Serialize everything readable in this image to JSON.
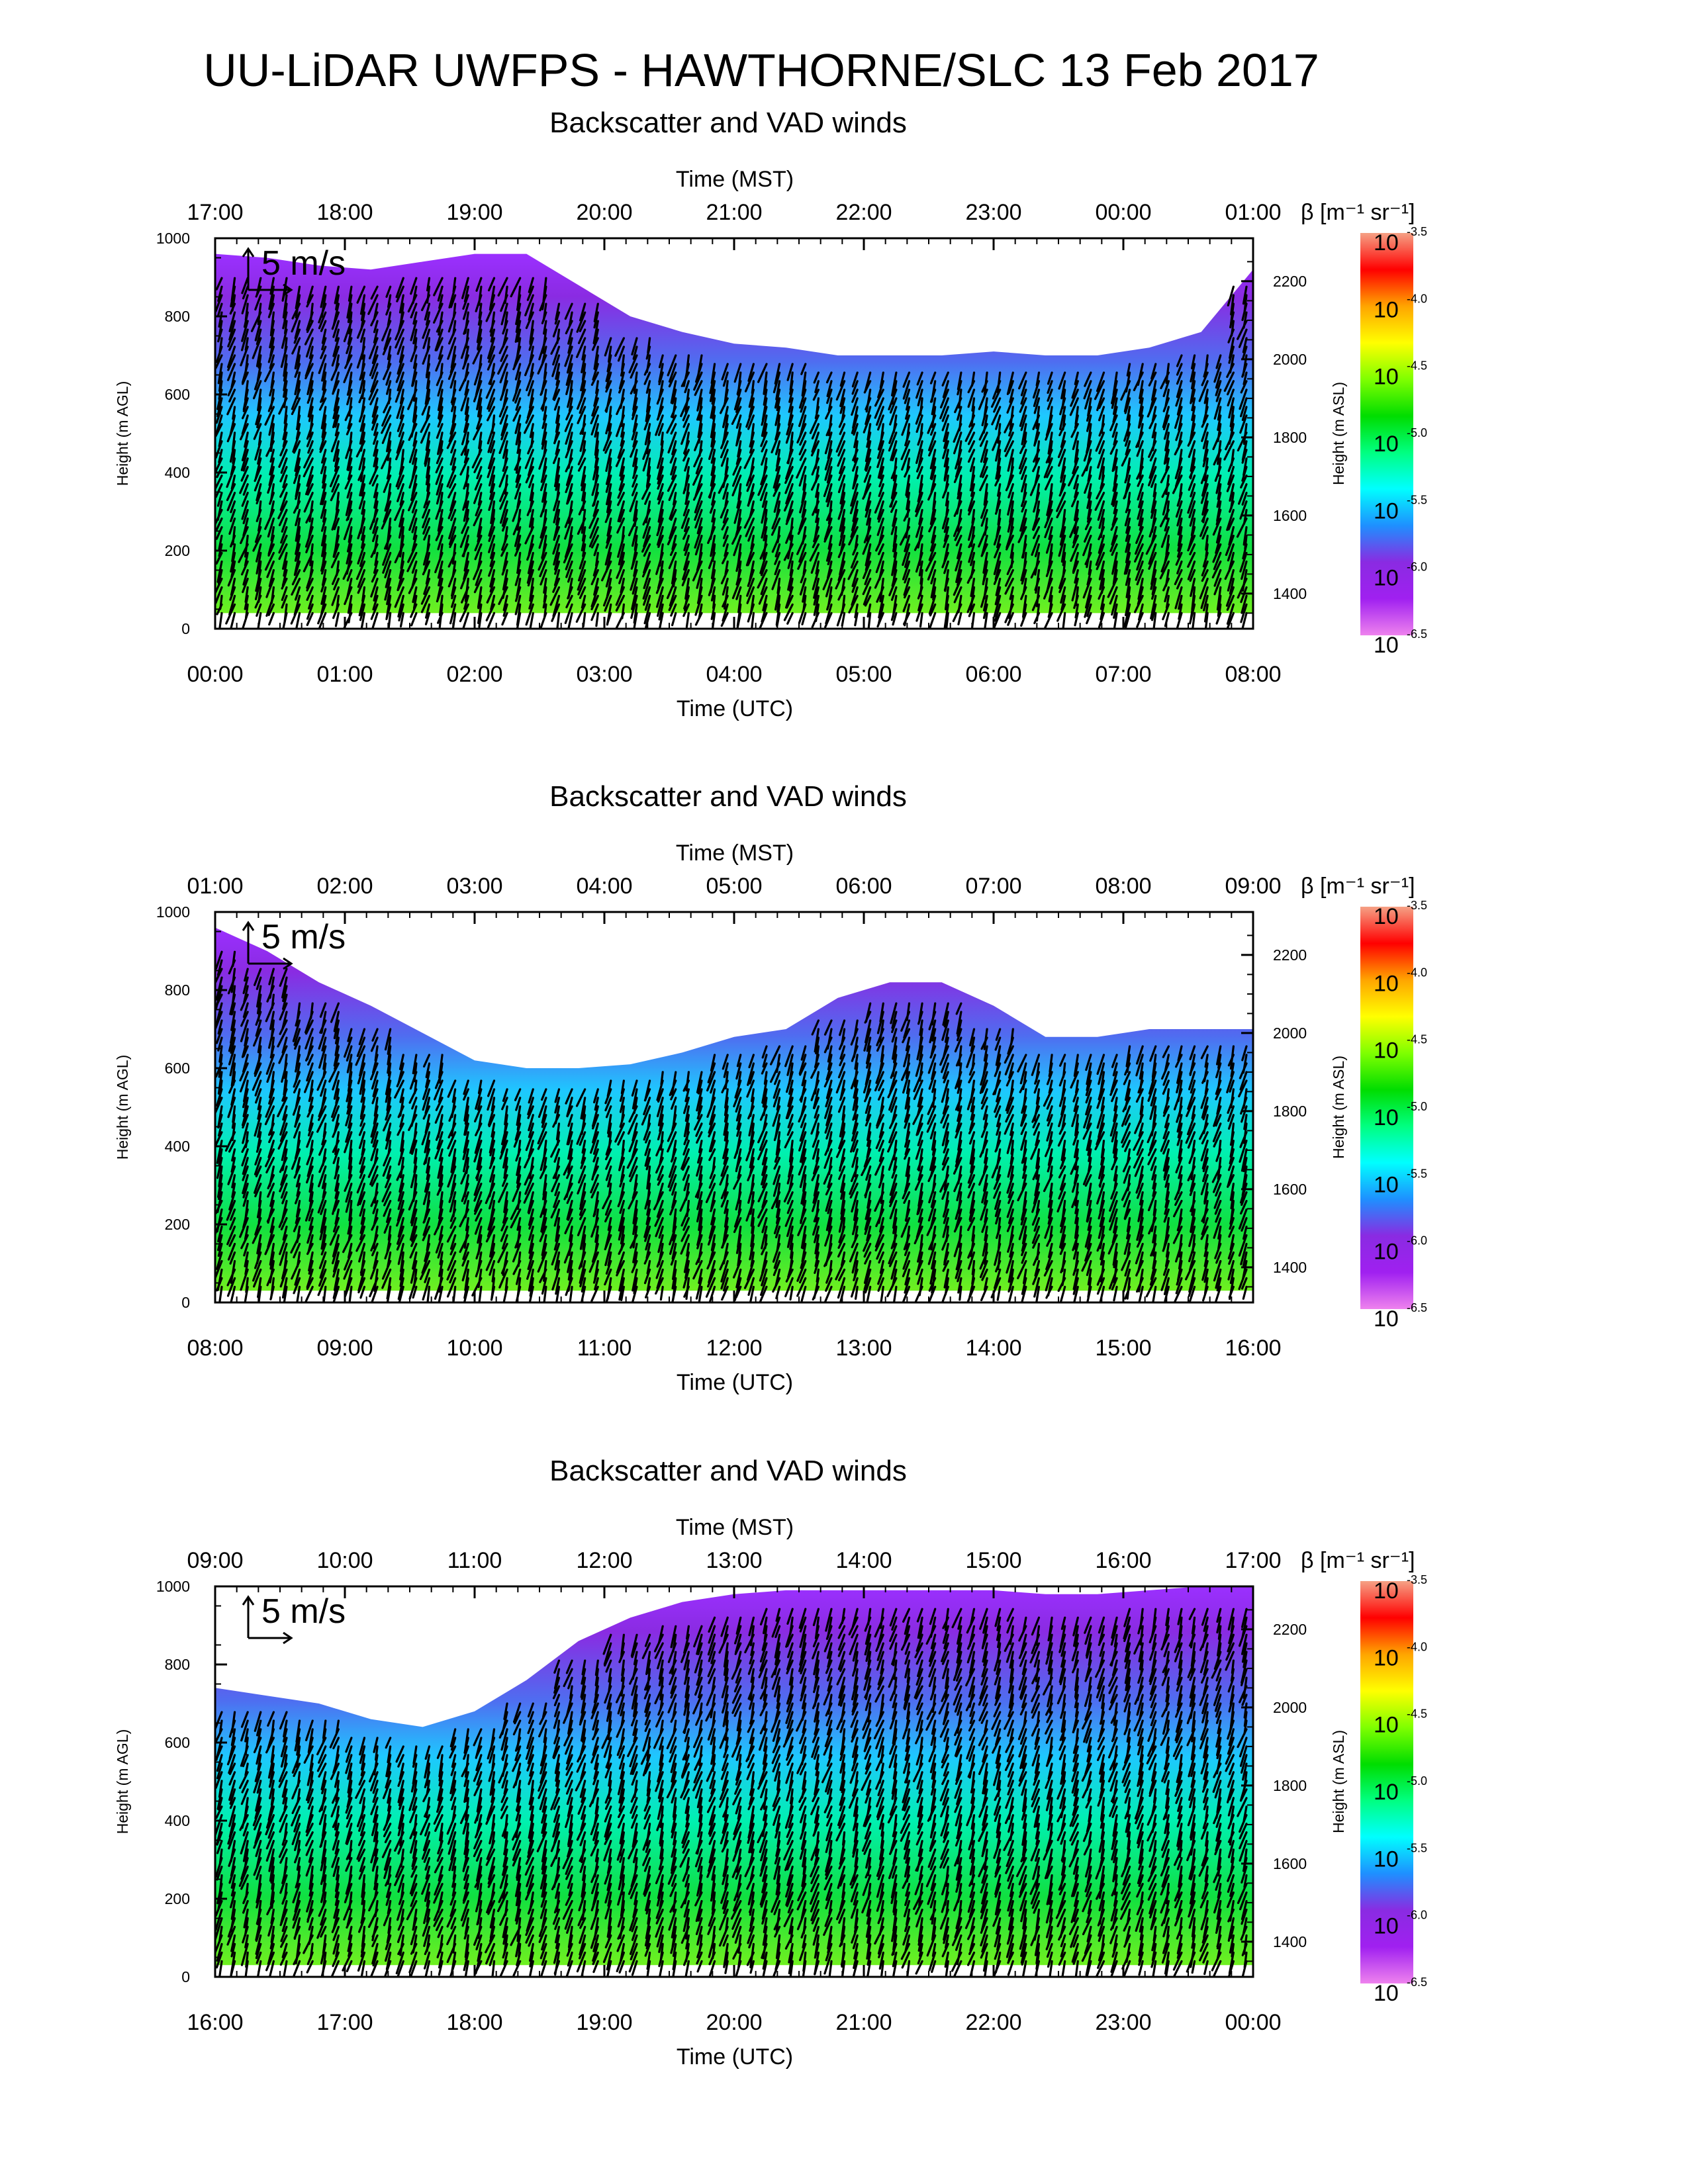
{
  "figure": {
    "title": "UU-LiDAR UWFPS - HAWTHORNE/SLC 13 Feb 2017"
  },
  "colorbar": {
    "label": "β [m⁻¹ sr⁻¹]",
    "exponents": [
      "-3.5",
      "-4.0",
      "-4.5",
      "-5.0",
      "-5.5",
      "-6.0",
      "-6.5"
    ],
    "colors": [
      "#f5a185",
      "#ff0000",
      "#ffa500",
      "#ffff00",
      "#7fff00",
      "#00dd00",
      "#00ff80",
      "#00ffff",
      "#1e90ff",
      "#8a2be2",
      "#a020f0",
      "#ee82ee"
    ]
  },
  "chart_data": [
    {
      "type": "heatmap",
      "title": "Backscatter and VAD winds",
      "x_top_label": "Time (MST)",
      "x_top_ticks": [
        "17:00",
        "18:00",
        "19:00",
        "20:00",
        "21:00",
        "22:00",
        "23:00",
        "00:00",
        "01:00"
      ],
      "xlabel": "Time (UTC)",
      "x_ticks": [
        "00:00",
        "01:00",
        "02:00",
        "03:00",
        "04:00",
        "05:00",
        "06:00",
        "07:00",
        "08:00"
      ],
      "ylabel": "Height (m AGL)",
      "y_ticks": [
        0,
        200,
        400,
        600,
        800,
        1000
      ],
      "ylim": [
        0,
        1000
      ],
      "y2label": "Height (m ASL)",
      "y2_ticks": [
        1400,
        1600,
        1800,
        2000,
        2200
      ],
      "y2lim": [
        1310,
        2310
      ],
      "wind_scale_label": "5 m/s",
      "cloud_top_m": [
        960,
        950,
        930,
        920,
        940,
        960,
        960,
        880,
        800,
        760,
        730,
        720,
        700,
        700,
        700,
        710,
        700,
        700,
        720,
        760,
        920
      ],
      "signal_base_m": [
        40,
        40,
        40,
        40,
        40,
        40,
        40,
        40,
        40,
        40,
        40,
        40,
        40,
        40,
        40,
        40,
        40,
        40,
        40,
        40,
        40
      ]
    },
    {
      "type": "heatmap",
      "title": "Backscatter and VAD winds",
      "x_top_label": "Time (MST)",
      "x_top_ticks": [
        "01:00",
        "02:00",
        "03:00",
        "04:00",
        "05:00",
        "06:00",
        "07:00",
        "08:00",
        "09:00"
      ],
      "xlabel": "Time (UTC)",
      "x_ticks": [
        "08:00",
        "09:00",
        "10:00",
        "11:00",
        "12:00",
        "13:00",
        "14:00",
        "15:00",
        "16:00"
      ],
      "ylabel": "Height (m AGL)",
      "y_ticks": [
        0,
        200,
        400,
        600,
        800,
        1000
      ],
      "ylim": [
        0,
        1000
      ],
      "y2label": "Height (m ASL)",
      "y2_ticks": [
        1400,
        1600,
        1800,
        2000,
        2200
      ],
      "y2lim": [
        1310,
        2310
      ],
      "wind_scale_label": "5 m/s",
      "cloud_top_m": [
        960,
        900,
        820,
        760,
        690,
        620,
        600,
        600,
        610,
        640,
        680,
        700,
        780,
        820,
        820,
        760,
        680,
        680,
        700,
        700,
        700
      ],
      "signal_base_m": [
        30,
        30,
        30,
        30,
        30,
        30,
        30,
        30,
        30,
        30,
        30,
        30,
        30,
        30,
        30,
        30,
        30,
        30,
        30,
        30,
        30
      ]
    },
    {
      "type": "heatmap",
      "title": "Backscatter and VAD winds",
      "x_top_label": "Time (MST)",
      "x_top_ticks": [
        "09:00",
        "10:00",
        "11:00",
        "12:00",
        "13:00",
        "14:00",
        "15:00",
        "16:00",
        "17:00"
      ],
      "xlabel": "Time (UTC)",
      "x_ticks": [
        "16:00",
        "17:00",
        "18:00",
        "19:00",
        "20:00",
        "21:00",
        "22:00",
        "23:00",
        "00:00"
      ],
      "ylabel": "Height (m AGL)",
      "y_ticks": [
        0,
        200,
        400,
        600,
        800,
        1000
      ],
      "ylim": [
        0,
        1000
      ],
      "y2label": "Height (m ASL)",
      "y2_ticks": [
        1400,
        1600,
        1800,
        2000,
        2200
      ],
      "y2lim": [
        1310,
        2310
      ],
      "wind_scale_label": "5 m/s",
      "cloud_top_m": [
        740,
        720,
        700,
        660,
        640,
        680,
        760,
        860,
        920,
        960,
        980,
        990,
        990,
        990,
        990,
        990,
        980,
        980,
        990,
        1000,
        1000
      ],
      "signal_base_m": [
        30,
        30,
        30,
        30,
        30,
        30,
        30,
        30,
        30,
        30,
        30,
        30,
        30,
        30,
        30,
        30,
        30,
        30,
        30,
        30,
        30
      ]
    }
  ]
}
